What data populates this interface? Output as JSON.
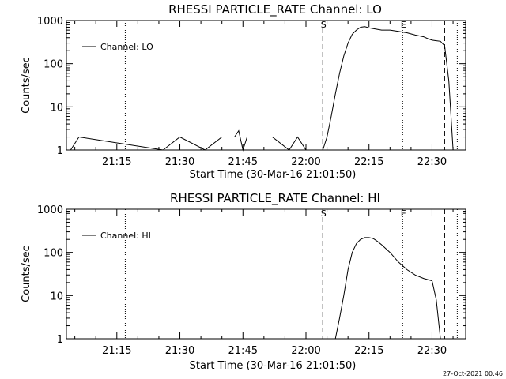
{
  "chart_data": [
    {
      "type": "line",
      "title": "RHESSI PARTICLE_RATE Channel: LO",
      "xlabel": "Start Time (30-Mar-16 21:01:50)",
      "ylabel": "Counts/sec",
      "y_scale": "log",
      "ylim": [
        1,
        1000
      ],
      "xlim": [
        "21:03",
        "22:38"
      ],
      "x_ticks": [
        "21:15",
        "21:30",
        "21:45",
        "22:00",
        "22:15",
        "22:30"
      ],
      "y_ticks": [
        "1",
        "10",
        "100",
        "1000"
      ],
      "legend": "top-left",
      "markers": [
        {
          "label": "S",
          "time": "22:04",
          "style": "dashed"
        },
        {
          "label": "E",
          "time": "22:23",
          "style": "dotted"
        }
      ],
      "vlines": [
        {
          "time": "21:17",
          "style": "dotted"
        },
        {
          "time": "22:04",
          "style": "dashed"
        },
        {
          "time": "22:23",
          "style": "dotted"
        },
        {
          "time": "22:33",
          "style": "dashed"
        },
        {
          "time": "22:36",
          "style": "dotted"
        }
      ],
      "series": [
        {
          "name": "Channel: LO",
          "x": [
            "21:04",
            "21:06",
            "21:26",
            "21:30",
            "21:36",
            "21:40",
            "21:43",
            "21:44",
            "21:45",
            "21:46",
            "21:52",
            "21:56",
            "21:58",
            "22:00",
            "22:04",
            "22:05",
            "22:06",
            "22:07",
            "22:08",
            "22:09",
            "22:10",
            "22:11",
            "22:12",
            "22:13",
            "22:14",
            "22:15",
            "22:16",
            "22:18",
            "22:20",
            "22:22",
            "22:24",
            "22:26",
            "22:28",
            "22:29",
            "22:30",
            "22:31",
            "22:32",
            "22:33",
            "22:34",
            "22:35"
          ],
          "y": [
            1,
            2,
            1,
            2,
            1,
            2,
            2,
            2.8,
            1,
            2,
            2,
            1,
            2,
            1,
            1,
            2,
            6,
            20,
            60,
            150,
            300,
            480,
            600,
            700,
            720,
            680,
            650,
            600,
            600,
            560,
            520,
            460,
            420,
            380,
            350,
            340,
            330,
            260,
            40,
            1
          ]
        }
      ]
    },
    {
      "type": "line",
      "title": "RHESSI PARTICLE_RATE Channel: HI",
      "xlabel": "Start Time (30-Mar-16 21:01:50)",
      "ylabel": "Counts/sec",
      "y_scale": "log",
      "ylim": [
        1,
        1000
      ],
      "xlim": [
        "21:03",
        "22:38"
      ],
      "x_ticks": [
        "21:15",
        "21:30",
        "21:45",
        "22:00",
        "22:15",
        "22:30"
      ],
      "y_ticks": [
        "1",
        "10",
        "100",
        "1000"
      ],
      "legend": "top-left",
      "markers": [
        {
          "label": "S",
          "time": "22:04",
          "style": "dashed"
        },
        {
          "label": "E",
          "time": "22:23",
          "style": "dotted"
        }
      ],
      "vlines": [
        {
          "time": "21:17",
          "style": "dotted"
        },
        {
          "time": "22:04",
          "style": "dashed"
        },
        {
          "time": "22:23",
          "style": "dotted"
        },
        {
          "time": "22:33",
          "style": "dashed"
        },
        {
          "time": "22:36",
          "style": "dotted"
        }
      ],
      "series": [
        {
          "name": "Channel: HI",
          "x": [
            "22:07",
            "22:08",
            "22:09",
            "22:10",
            "22:11",
            "22:12",
            "22:13",
            "22:14",
            "22:15",
            "22:16",
            "22:17",
            "22:18",
            "22:20",
            "22:22",
            "22:24",
            "22:26",
            "22:28",
            "22:30",
            "22:31",
            "22:32"
          ],
          "y": [
            1,
            3,
            10,
            40,
            100,
            160,
            200,
            220,
            220,
            210,
            180,
            150,
            100,
            60,
            40,
            30,
            25,
            22,
            8,
            1
          ]
        }
      ]
    }
  ],
  "footer": {
    "timestamp": "27-Oct-2021 00:46"
  }
}
